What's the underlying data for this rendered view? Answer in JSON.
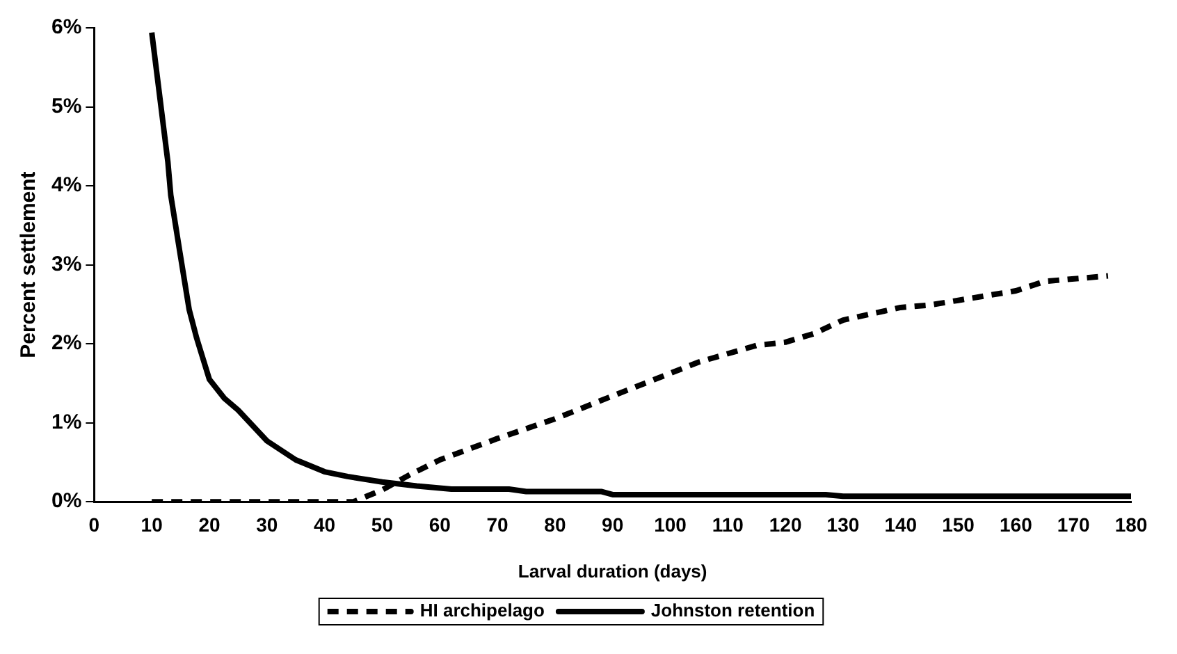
{
  "chart_data": {
    "type": "line",
    "xlabel": "Larval duration (days)",
    "ylabel": "Percent settlement",
    "xlim": [
      0,
      180
    ],
    "xticks": [
      0,
      10,
      20,
      30,
      40,
      50,
      60,
      70,
      80,
      90,
      100,
      110,
      120,
      130,
      140,
      150,
      160,
      170,
      180
    ],
    "ylim": [
      0,
      6
    ],
    "yticks": [
      {
        "value": 0,
        "label": "0%"
      },
      {
        "value": 1,
        "label": "1%"
      },
      {
        "value": 2,
        "label": "2%"
      },
      {
        "value": 3,
        "label": "3%"
      },
      {
        "value": 4,
        "label": "4%"
      },
      {
        "value": 5,
        "label": "5%"
      },
      {
        "value": 6,
        "label": "6%"
      }
    ],
    "grid": false,
    "legend": "bottom",
    "marker": "none",
    "series": [
      {
        "name": "HI archipelago",
        "color": "#000000",
        "line_style": "dashed",
        "x": [
          10,
          20,
          30,
          40,
          45,
          50,
          55,
          60,
          70,
          80,
          90,
          105,
          115,
          120,
          125,
          130,
          140,
          145,
          150,
          155,
          160,
          165,
          176
        ],
        "values": [
          0,
          0,
          0,
          0,
          0,
          0.15,
          0.35,
          0.53,
          0.8,
          1.05,
          1.34,
          1.77,
          1.98,
          2.02,
          2.13,
          2.3,
          2.46,
          2.49,
          2.55,
          2.61,
          2.67,
          2.79,
          2.86
        ]
      },
      {
        "name": "Johnston retention",
        "color": "#000000",
        "line_style": "solid",
        "x": [
          10,
          12.8,
          13.3,
          14.9,
          16.5,
          17.8,
          20,
          22.6,
          25,
          30,
          35,
          40,
          44,
          50,
          56,
          62,
          72,
          75,
          88,
          90,
          127,
          130,
          180
        ],
        "values": [
          5.94,
          4.3,
          3.88,
          3.15,
          2.43,
          2.07,
          1.55,
          1.31,
          1.16,
          0.77,
          0.53,
          0.38,
          0.32,
          0.25,
          0.2,
          0.16,
          0.16,
          0.13,
          0.13,
          0.09,
          0.09,
          0.07,
          0.07
        ]
      }
    ]
  }
}
